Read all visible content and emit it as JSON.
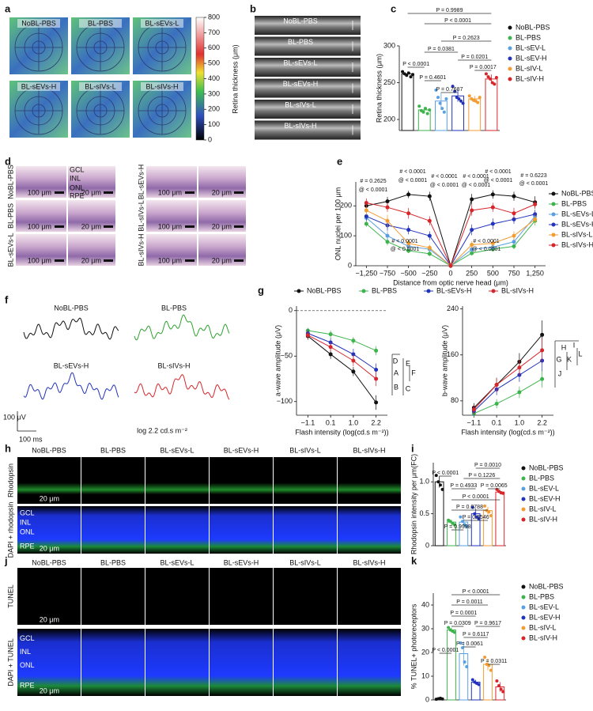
{
  "panel_labels": [
    "a",
    "b",
    "c",
    "d",
    "e",
    "f",
    "g",
    "h",
    "i",
    "j",
    "k"
  ],
  "panel_a": {
    "labels": [
      "NoBL-PBS",
      "BL-PBS",
      "BL-sEVs-L",
      "BL-sEVs-H",
      "BL-sIVs-L",
      "BL-sIVs-H"
    ],
    "colorbar_ticks": [
      800,
      700,
      600,
      500,
      400,
      300,
      200,
      100,
      0
    ],
    "colorbar_label": "Retina thickness (μm)"
  },
  "panel_b": {
    "labels": [
      "NoBL-PBS",
      "BL-PBS",
      "BL-sEVs-L",
      "BL-sEVs-H",
      "BL-sIVs-L",
      "BL-sIVs-H"
    ]
  },
  "panel_d": {
    "row_labels_left": [
      "NoBL-PBS",
      "BL-PBS",
      "BL-sEVs-L"
    ],
    "row_labels_right": [
      "BL-sEVs-H",
      "BL-sIVs-L",
      "BL-sIVs-H"
    ],
    "layers": [
      "GCL",
      "INL",
      "ONL",
      "RPE"
    ],
    "scale_bars": [
      "100 μm",
      "20 μm"
    ]
  },
  "panel_f": {
    "traces": [
      "NoBL-PBS",
      "BL-PBS",
      "BL-sEVs-H",
      "BL-sIVs-H"
    ],
    "scale_y": "100 μV",
    "scale_x": "100 ms",
    "caption": "log 2.2 cd.s m⁻²"
  },
  "panel_h": {
    "columns": [
      "NoBL-PBS",
      "BL-PBS",
      "BL-sEVs-L",
      "BL-sEVs-H",
      "BL-sIVs-L",
      "BL-sIVs-H"
    ],
    "rows": [
      "Rhodopsin",
      "DAPI + rhodopsin"
    ],
    "layers": [
      "GCL",
      "INL",
      "ONL",
      "RPE"
    ],
    "scale_bar": "20 μm"
  },
  "panel_j": {
    "columns": [
      "NoBL-PBS",
      "BL-PBS",
      "BL-sEVs-L",
      "BL-sEVs-H",
      "BL-sIVs-L",
      "BL-sIVs-H"
    ],
    "rows": [
      "TUNEL",
      "DAPI + TUNEL"
    ],
    "layers": [
      "GCL",
      "INL",
      "ONL",
      "RPE"
    ],
    "scale_bar": "20 μm"
  },
  "chart_data": [
    {
      "type": "bar",
      "y_label": "Retina thickness (μm)",
      "categories": [
        "NoBL-PBS",
        "BL-PBS",
        "BL-sEV-L",
        "BL-sEV-H",
        "BL-sIV-L",
        "BL-sIV-H"
      ],
      "colors": [
        "#111111",
        "#3cb44b",
        "#5aa0e0",
        "#2233bb",
        "#f39c34",
        "#d7262b"
      ],
      "values": [
        262,
        213,
        225,
        232,
        228,
        255
      ],
      "errors": [
        3,
        4,
        12,
        8,
        4,
        6
      ],
      "points": [
        [
          265,
          262,
          260,
          263,
          258,
          261
        ],
        [
          218,
          212,
          210,
          215,
          208,
          213
        ],
        [
          240,
          230,
          222,
          215,
          210,
          228
        ],
        [
          245,
          238,
          230,
          228,
          225,
          222
        ],
        [
          232,
          228,
          226,
          225,
          223,
          230
        ],
        [
          262,
          258,
          255,
          250,
          248,
          257
        ]
      ],
      "ylim": [
        185,
        300
      ],
      "yticks": [
        200,
        250,
        300
      ],
      "annotations": [
        "P = 0.9989",
        "P < 0.0001",
        "P = 0.2623",
        "P = 0.0381",
        "P = 0.0201",
        "P = 0.4601",
        "P = 0.7687",
        "P = 0.0017",
        "P < 0.0001"
      ]
    },
    {
      "type": "line",
      "y_label": "ONL nuclei per 100 μm",
      "x_label": "Distance from optic nerve head (μm)",
      "categories": [
        "−1,250",
        "−750",
        "−500",
        "−250",
        "0",
        "250",
        "500",
        "750",
        "1,250"
      ],
      "series": [
        {
          "name": "NoBL-PBS",
          "color": "#111111",
          "values": [
            200,
            215,
            238,
            232,
            0,
            222,
            238,
            232,
            212
          ],
          "errors": [
            12,
            15,
            12,
            15,
            0,
            18,
            14,
            15,
            20
          ]
        },
        {
          "name": "BL-PBS",
          "color": "#3cb44b",
          "values": [
            140,
            80,
            50,
            40,
            0,
            42,
            55,
            65,
            150
          ],
          "errors": [
            10,
            12,
            8,
            8,
            0,
            8,
            8,
            10,
            15
          ]
        },
        {
          "name": "BL-sEVs-L",
          "color": "#5aa0e0",
          "values": [
            160,
            100,
            65,
            55,
            0,
            55,
            62,
            80,
            165
          ],
          "errors": [
            12,
            15,
            10,
            8,
            0,
            10,
            10,
            12,
            15
          ]
        },
        {
          "name": "BL-sEVs-H",
          "color": "#2233bb",
          "values": [
            165,
            135,
            120,
            100,
            0,
            120,
            140,
            155,
            172
          ],
          "errors": [
            15,
            18,
            15,
            15,
            0,
            18,
            18,
            15,
            15
          ]
        },
        {
          "name": "BL-sIVs-L",
          "color": "#f39c34",
          "values": [
            185,
            150,
            75,
            60,
            0,
            70,
            75,
            100,
            155
          ],
          "errors": [
            15,
            20,
            12,
            10,
            0,
            12,
            12,
            15,
            15
          ]
        },
        {
          "name": "BL-sIVs-H",
          "color": "#d7262b",
          "values": [
            210,
            195,
            175,
            150,
            0,
            185,
            195,
            175,
            205
          ],
          "errors": [
            15,
            15,
            18,
            15,
            0,
            18,
            15,
            18,
            15
          ]
        }
      ],
      "ylim": [
        0,
        280
      ],
      "yticks": [
        0,
        100,
        200
      ],
      "annotations": [
        "# = 0.2625",
        "@ < 0.0001",
        "# < 0.0001",
        "@ < 0.0001",
        "# < 0.0001",
        "@ < 0.0001",
        "# < 0.0001",
        "@ < 0.0001",
        "# < 0.0001",
        "@ < 0.0001",
        "# = 0.6223",
        "@ < 0.0001",
        "# < 0.0001",
        "@ < 0.0001",
        "# < 0.0001",
        "@ < 0.0001"
      ]
    },
    {
      "type": "line",
      "y_label": "a-wave amplitude (μV)",
      "x_label": "Flash intensity (log(cd.s m⁻²))",
      "categories": [
        "−1.1",
        "0.1",
        "1.0",
        "2.2"
      ],
      "series": [
        {
          "name": "NoBL-PBS",
          "color": "#111111",
          "values": [
            -28,
            -48,
            -67,
            -101
          ],
          "errors": [
            4,
            5,
            5,
            8
          ]
        },
        {
          "name": "BL-PBS",
          "color": "#3cb44b",
          "values": [
            -22,
            -26,
            -33,
            -44
          ],
          "errors": [
            3,
            4,
            4,
            5
          ]
        },
        {
          "name": "BL-sEVs-H",
          "color": "#2233bb",
          "values": [
            -25,
            -35,
            -48,
            -65
          ],
          "errors": [
            4,
            5,
            6,
            7
          ]
        },
        {
          "name": "BL-sIVs-H",
          "color": "#d7262b",
          "values": [
            -27,
            -40,
            -55,
            -75
          ],
          "errors": [
            4,
            5,
            6,
            8
          ]
        }
      ],
      "ylim": [
        -115,
        5
      ],
      "yticks": [
        {
          "value": -100,
          "label": "−100"
        },
        {
          "value": -50,
          "label": "−50"
        },
        0
      ],
      "annotations": [
        "A",
        "B",
        "C",
        "D",
        "E",
        "F"
      ]
    },
    {
      "type": "line",
      "y_label": "b-wave amplitude (μV)",
      "x_label": "Flash intensity (log(cd.s m⁻²))",
      "categories": [
        "−1.1",
        "0.1",
        "1.0",
        "2.2"
      ],
      "series": [
        {
          "color": "#111111",
          "values": [
            68,
            108,
            148,
            195
          ],
          "errors": [
            8,
            12,
            15,
            25
          ]
        },
        {
          "color": "#3cb44b",
          "values": [
            58,
            75,
            95,
            118
          ],
          "errors": [
            6,
            8,
            10,
            15
          ]
        },
        {
          "color": "#2233bb",
          "values": [
            62,
            100,
            125,
            150
          ],
          "errors": [
            8,
            10,
            12,
            18
          ]
        },
        {
          "color": "#d7262b",
          "values": [
            65,
            108,
            138,
            168
          ],
          "errors": [
            8,
            12,
            14,
            20
          ]
        }
      ],
      "ylim": [
        55,
        245
      ],
      "yticks": [
        80,
        160,
        240
      ],
      "annotations": [
        "G",
        "H",
        "I",
        "J",
        "K",
        "L"
      ]
    },
    {
      "type": "bar",
      "y_label": "Rhodopsin intensity per μm(FC)",
      "categories": [
        "NoBL-PBS",
        "BL-PBS",
        "BL-sEV-L",
        "BL-sEV-H",
        "BL-sIV-L",
        "BL-sIV-H"
      ],
      "colors": [
        "#111111",
        "#3cb44b",
        "#5aa0e0",
        "#2233bb",
        "#f39c34",
        "#d7262b"
      ],
      "values": [
        1.0,
        0.37,
        0.37,
        0.5,
        0.55,
        0.84
      ],
      "errors": [
        0.09,
        0.03,
        0.06,
        0.08,
        0.06,
        0.03
      ],
      "points": [
        [
          1.1,
          1.0,
          0.95,
          0.88
        ],
        [
          0.4,
          0.38,
          0.35,
          0.33
        ],
        [
          0.45,
          0.38,
          0.33,
          0.3
        ],
        [
          0.6,
          0.5,
          0.45,
          0.42
        ],
        [
          0.62,
          0.55,
          0.53,
          0.47
        ],
        [
          0.88,
          0.85,
          0.83,
          0.82
        ]
      ],
      "ylim": [
        0,
        1.3
      ],
      "yticks": [
        0,
        0.5,
        {
          "value": 1,
          "label": "1.0"
        }
      ],
      "annotations": [
        "P = 0.0010",
        "P = 0.1226",
        "P = 0.4933",
        "P = 0.0065",
        "P < 0.0001",
        "P = 0.0788",
        "P = 0.3546",
        "P = 0.9998",
        "P < 0.0001"
      ]
    },
    {
      "type": "bar",
      "y_label": "% TUNEL+ photoreceptors",
      "categories": [
        "NoBL-PBS",
        "BL-PBS",
        "BL-sEV-L",
        "BL-sEV-H",
        "BL-sIV-L",
        "BL-sIV-H"
      ],
      "colors": [
        "#111111",
        "#3cb44b",
        "#5aa0e0",
        "#2233bb",
        "#f39c34",
        "#d7262b"
      ],
      "values": [
        0.5,
        29.5,
        19.5,
        7.5,
        15,
        5.5
      ],
      "errors": [
        0.2,
        0.9,
        5,
        1,
        2.5,
        2
      ],
      "points": [
        [
          0.3,
          0.5,
          0.7,
          0.4
        ],
        [
          30.5,
          29.5,
          29,
          28.5
        ],
        [
          24,
          22,
          16,
          14
        ],
        [
          8.5,
          7.5,
          7,
          6.5
        ],
        [
          18,
          15,
          14.5,
          12.5
        ],
        [
          8,
          6,
          4.5,
          3.5
        ]
      ],
      "ylim": [
        0,
        45
      ],
      "yticks": [
        0,
        10,
        20,
        30,
        40
      ],
      "annotations": [
        "P < 0.0001",
        "P = 0.0011",
        "P = 0.0001",
        "P = 0.0309",
        "P = 0.9617",
        "P = 0.6117",
        "P = 0.0061",
        "P = 0.0311",
        "P < 0.0001"
      ]
    }
  ]
}
